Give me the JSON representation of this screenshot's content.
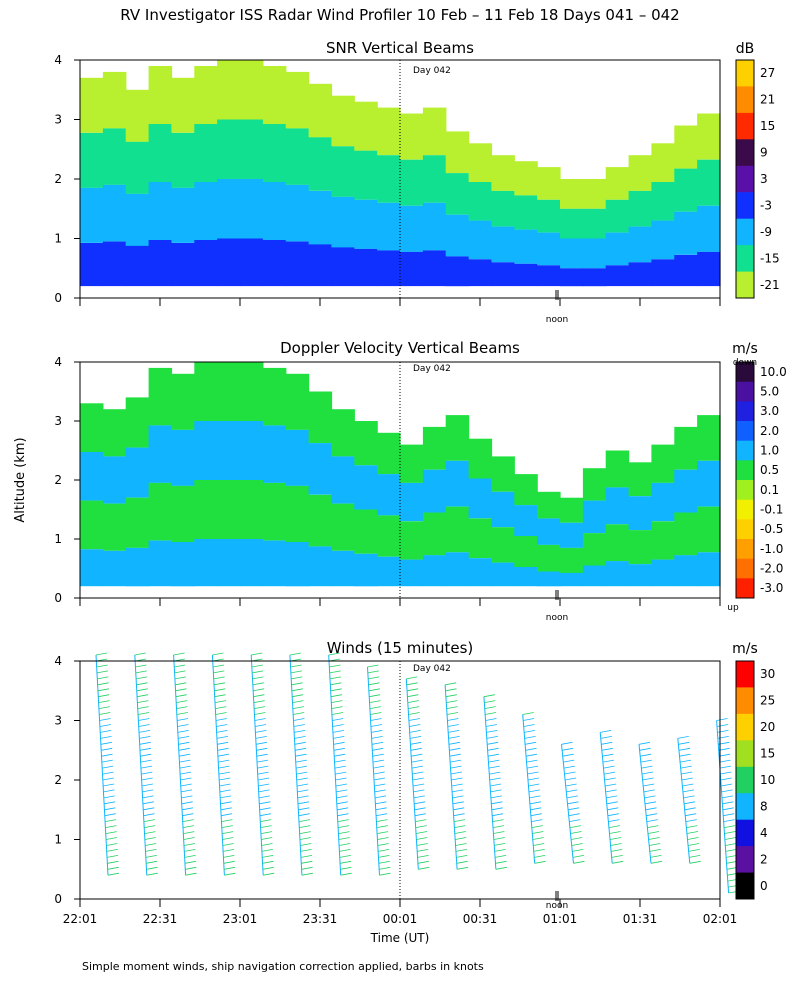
{
  "figure_title": "RV Investigator ISS Radar Wind Profiler  10 Feb – 11 Feb 18 Days 041 – 042",
  "y_axis_label": "Altitude (km)",
  "x_axis_label": "Time (UT)",
  "day_marker": "Day 042",
  "noon_label": "noon",
  "footnote": "Simple moment winds, ship navigation correction applied, barbs in knots",
  "x_ticks": [
    "22:01",
    "22:31",
    "23:01",
    "23:31",
    "00:01",
    "00:31",
    "01:01",
    "01:31",
    "02:01"
  ],
  "y_ticks": [
    "0",
    "1",
    "2",
    "3",
    "4"
  ],
  "chart_data": [
    {
      "type": "heatmap",
      "title": "SNR Vertical Beams",
      "xlabel": "Time (UT)",
      "ylabel": "Altitude (km)",
      "ylim": [
        0,
        4
      ],
      "colorbar": {
        "unit": "dB",
        "labels": [
          "27",
          "21",
          "15",
          "9",
          "3",
          "-3",
          "-9",
          "-15",
          "-21"
        ],
        "colors": [
          "#ffd000",
          "#ff8c00",
          "#ff2a00",
          "#3b0a4a",
          "#5a10a8",
          "#1030ff",
          "#10b4ff",
          "#10e090",
          "#b8f030"
        ]
      },
      "profile_top_km": [
        3.7,
        3.8,
        3.5,
        3.9,
        3.7,
        3.9,
        4.0,
        4.0,
        3.9,
        3.8,
        3.6,
        3.4,
        3.3,
        3.2,
        3.1,
        3.2,
        2.8,
        2.6,
        2.4,
        2.3,
        2.2,
        2.0,
        2.0,
        2.2,
        2.4,
        2.6,
        2.9,
        3.1
      ]
    },
    {
      "type": "heatmap",
      "title": "Doppler Velocity Vertical Beams",
      "xlabel": "Time (UT)",
      "ylabel": "Altitude (km)",
      "ylim": [
        0,
        4
      ],
      "colorbar": {
        "unit": "m/s",
        "top_label": "down",
        "bottom_label": "up",
        "labels": [
          "10.0",
          "5.0",
          "3.0",
          "2.0",
          "1.0",
          "0.5",
          "0.1",
          "-0.1",
          "-0.5",
          "-1.0",
          "-2.0",
          "-3.0"
        ],
        "colors": [
          "#2a0a3a",
          "#4a10a0",
          "#2020e0",
          "#1060ff",
          "#10b4ff",
          "#20e040",
          "#a0f020",
          "#f0f000",
          "#ffd000",
          "#ffa000",
          "#ff7000",
          "#ff2000"
        ]
      },
      "profile_top_km": [
        3.3,
        3.2,
        3.4,
        3.9,
        3.8,
        4.0,
        4.0,
        4.0,
        3.9,
        3.8,
        3.5,
        3.2,
        3.0,
        2.8,
        2.6,
        2.9,
        3.1,
        2.7,
        2.4,
        2.1,
        1.8,
        1.7,
        2.2,
        2.5,
        2.3,
        2.6,
        2.9,
        3.1
      ]
    },
    {
      "type": "scatter",
      "title": "Winds (15 minutes)",
      "xlabel": "Time (UT)",
      "ylabel": "Altitude (km)",
      "ylim": [
        0,
        4
      ],
      "colorbar": {
        "unit": "m/s",
        "labels": [
          "30",
          "25",
          "20",
          "15",
          "10",
          "8",
          "4",
          "2",
          "0"
        ],
        "colors": [
          "#ff0000",
          "#ff8c00",
          "#ffd000",
          "#a0e020",
          "#20d060",
          "#10b4ff",
          "#1010e0",
          "#5a10a0",
          "#000000"
        ]
      },
      "profile_top_km": [
        4.1,
        4.1,
        4.1,
        4.1,
        4.1,
        4.1,
        4.1,
        3.9,
        3.7,
        3.6,
        3.4,
        3.1,
        2.6,
        2.8,
        2.6,
        2.7,
        3.0
      ],
      "profile_bottom_km": [
        0.4,
        0.4,
        0.4,
        0.4,
        0.4,
        0.4,
        0.4,
        0.4,
        0.5,
        0.5,
        0.5,
        0.6,
        0.6,
        0.6,
        0.6,
        0.6,
        0.1
      ]
    }
  ]
}
